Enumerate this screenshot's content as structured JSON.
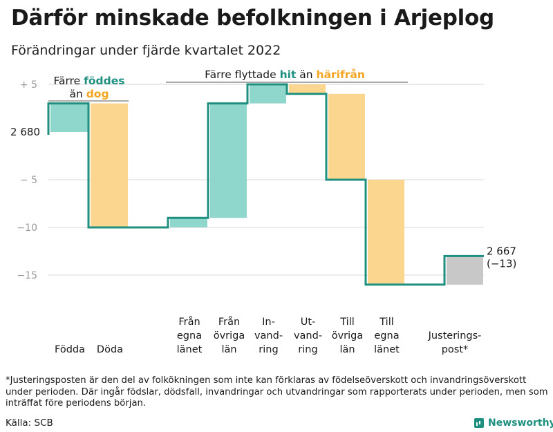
{
  "title": "Därför minskade befolkningen i Arjeplog",
  "subtitle": "Förändringar under fjärde kvartalet 2022",
  "footnote": "*Justeringsposten är den del av folkökningen som inte kan förklaras av födelseöverskott och invandringsöverskott under perioden. Där ingår födslar, dödsfall, invandringar och utvandringar som rapporterats under perioden, men som inträffat före periodens början.",
  "source": "Källa: SCB",
  "brand": "Newsworthy",
  "colors": {
    "increase": "#8fd6cc",
    "decrease": "#fbd68f",
    "adjustment": "#c8c8c8",
    "line": "#1f8f7f",
    "grid": "#d9d9d9",
    "tick_label": "#999999",
    "highlight_teal": "#1f8f7f",
    "highlight_orange": "#f4a623"
  },
  "chart_data": {
    "type": "waterfall",
    "ylim": [
      -17.5,
      5.5
    ],
    "yticks": [
      {
        "value": 5,
        "label": "+ 5"
      },
      {
        "value": 0,
        "label": ""
      },
      {
        "value": -5,
        "label": "− 5"
      },
      {
        "value": -10,
        "label": "−10"
      },
      {
        "value": -15,
        "label": "−15"
      }
    ],
    "start": {
      "value": 0,
      "label": "2 680"
    },
    "end": {
      "value": -13,
      "label": "2 667",
      "label2": "(−13)"
    },
    "steps": [
      {
        "category": "Födda",
        "label_lines": [
          "Födda"
        ],
        "change": 3,
        "type": "increase"
      },
      {
        "category": "Döda",
        "label_lines": [
          "Döda"
        ],
        "change": -13,
        "type": "decrease"
      },
      {
        "category": "Från egna länet",
        "label_lines": [
          "Från",
          "egna",
          "länet"
        ],
        "change": 1,
        "type": "increase"
      },
      {
        "category": "Från övriga län",
        "label_lines": [
          "Från",
          "övriga",
          "län"
        ],
        "change": 12,
        "type": "increase"
      },
      {
        "category": "Invandring",
        "label_lines": [
          "In-",
          "vand-",
          "ring"
        ],
        "change": 2,
        "type": "increase"
      },
      {
        "category": "Utvandring",
        "label_lines": [
          "Ut-",
          "vand-",
          "ring"
        ],
        "change": -1,
        "type": "decrease"
      },
      {
        "category": "Till övriga län",
        "label_lines": [
          "Till",
          "övriga",
          "län"
        ],
        "change": -9,
        "type": "decrease"
      },
      {
        "category": "Till egna länet",
        "label_lines": [
          "Till",
          "egna",
          "länet"
        ],
        "change": -11,
        "type": "decrease"
      },
      {
        "category": "Justeringspost*",
        "label_lines": [
          "Justerings-",
          "post*"
        ],
        "change": 3,
        "type": "adjustment"
      }
    ],
    "annotations": [
      {
        "group": "births",
        "lines": [
          [
            {
              "text": "Färre ",
              "hl": ""
            },
            {
              "text": "föddes",
              "hl": "teal"
            }
          ],
          [
            {
              "text": "än ",
              "hl": ""
            },
            {
              "text": "dog",
              "hl": "orange"
            }
          ]
        ]
      },
      {
        "group": "migration",
        "lines": [
          [
            {
              "text": "Färre flyttade ",
              "hl": ""
            },
            {
              "text": "hit",
              "hl": "teal"
            },
            {
              "text": " än ",
              "hl": ""
            },
            {
              "text": "härifrån",
              "hl": "orange"
            }
          ]
        ]
      }
    ]
  }
}
